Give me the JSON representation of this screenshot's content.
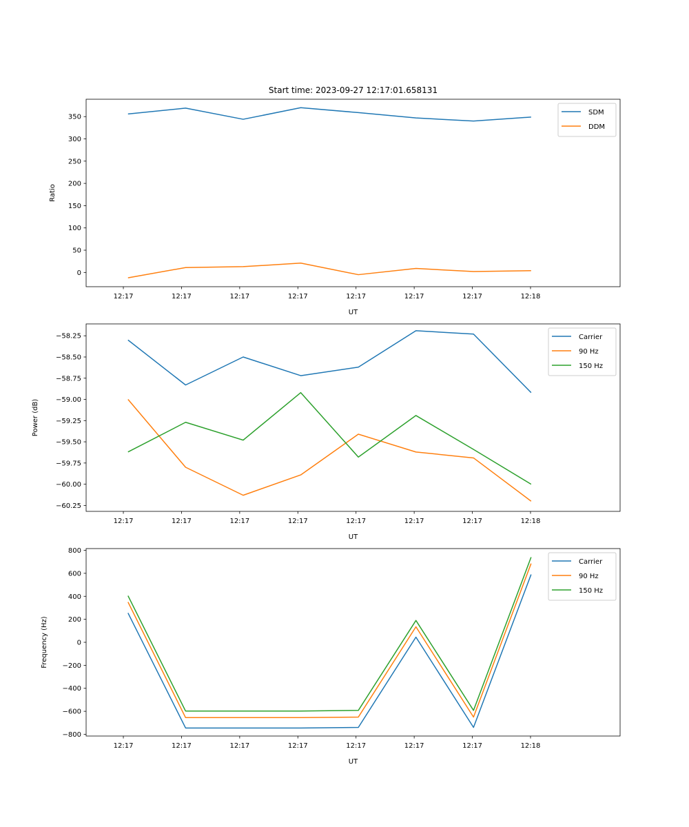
{
  "chart_data": [
    {
      "type": "line",
      "title": "Start time: 2023-09-27 12:17:01.658131",
      "xlabel": "UT",
      "ylabel": "Ratio",
      "xtick_labels": [
        "12:17",
        "12:17",
        "12:17",
        "12:17",
        "12:17",
        "12:17",
        "12:17"
      ],
      "xtick_last": "12:18",
      "xlim": [
        -0.64,
        8.54
      ],
      "x": [
        0.08,
        1.07,
        2.06,
        3.05,
        4.04,
        5.03,
        6.02,
        7.01
      ],
      "ylim": [
        -32,
        389
      ],
      "yticks": [
        0,
        50,
        100,
        150,
        200,
        250,
        300,
        350
      ],
      "legend_loc": "upper-right",
      "series": [
        {
          "name": "SDM",
          "color": "#1f77b4",
          "values": [
            356,
            369,
            344,
            370,
            359,
            347,
            340,
            349
          ]
        },
        {
          "name": "DDM",
          "color": "#ff7f0e",
          "values": [
            -12,
            11,
            13,
            21,
            -5,
            9,
            2,
            4
          ]
        }
      ]
    },
    {
      "type": "line",
      "title": "",
      "xlabel": "UT",
      "ylabel": "Power (dB)",
      "xtick_labels": [
        "12:17",
        "12:17",
        "12:17",
        "12:17",
        "12:17",
        "12:17",
        "12:17"
      ],
      "xtick_last": "12:18",
      "xlim": [
        -0.64,
        8.54
      ],
      "x": [
        0.08,
        1.07,
        2.06,
        3.05,
        4.04,
        5.03,
        6.02,
        7.01
      ],
      "ylim": [
        -60.32,
        -58.11
      ],
      "yticks": [
        -60.25,
        -60.0,
        -59.75,
        -59.5,
        -59.25,
        -59.0,
        -58.75,
        -58.5,
        -58.25
      ],
      "ytick_labels": [
        "−60.25",
        "−60.00",
        "−59.75",
        "−59.50",
        "−59.25",
        "−59.00",
        "−58.75",
        "−58.50",
        "−58.25"
      ],
      "legend_loc": "upper-right",
      "series": [
        {
          "name": "Carrier",
          "color": "#1f77b4",
          "values": [
            -58.3,
            -58.83,
            -58.5,
            -58.72,
            -58.62,
            -58.19,
            -58.23,
            -58.92
          ]
        },
        {
          "name": "90 Hz",
          "color": "#ff7f0e",
          "values": [
            -59.0,
            -59.8,
            -60.13,
            -59.89,
            -59.41,
            -59.62,
            -59.69,
            -60.2
          ]
        },
        {
          "name": "150 Hz",
          "color": "#2ca02c",
          "values": [
            -59.62,
            -59.27,
            -59.48,
            -58.92,
            -59.68,
            -59.19,
            -59.59,
            -60.0
          ]
        }
      ]
    },
    {
      "type": "line",
      "title": "",
      "xlabel": "UT",
      "ylabel": "Frequency (Hz)",
      "xtick_labels": [
        "12:17",
        "12:17",
        "12:17",
        "12:17",
        "12:17",
        "12:17",
        "12:17"
      ],
      "xtick_last": "12:18",
      "xlim": [
        -0.64,
        8.54
      ],
      "x": [
        0.08,
        1.07,
        2.06,
        3.05,
        4.04,
        5.03,
        6.02,
        7.01
      ],
      "ylim": [
        -815,
        815
      ],
      "yticks": [
        -800,
        -600,
        -400,
        -200,
        0,
        200,
        400,
        600,
        800
      ],
      "ytick_labels": [
        "−800",
        "−600",
        "−400",
        "−200",
        "0",
        "200",
        "400",
        "600",
        "800"
      ],
      "legend_loc": "upper-right",
      "series": [
        {
          "name": "Carrier",
          "color": "#1f77b4",
          "values": [
            255,
            -745,
            -745,
            -745,
            -740,
            45,
            -740,
            590
          ]
        },
        {
          "name": "90 Hz",
          "color": "#ff7f0e",
          "values": [
            350,
            -655,
            -655,
            -655,
            -650,
            135,
            -650,
            685
          ]
        },
        {
          "name": "150 Hz",
          "color": "#2ca02c",
          "values": [
            405,
            -598,
            -598,
            -598,
            -592,
            190,
            -592,
            740
          ]
        }
      ]
    }
  ]
}
